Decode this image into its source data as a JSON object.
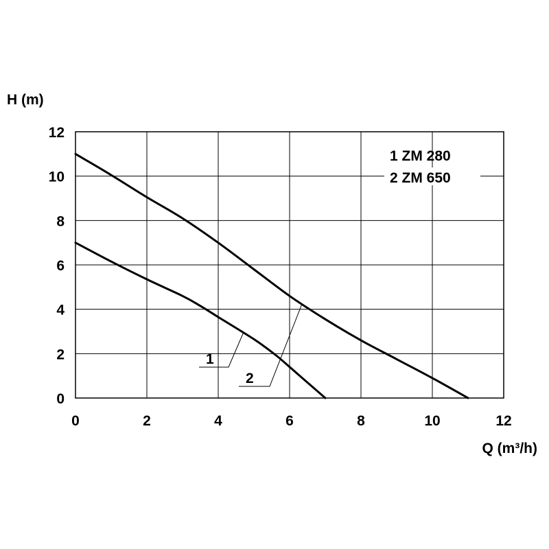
{
  "chart_data": {
    "type": "line",
    "title": "",
    "xlabel": "Q (m³/h)",
    "ylabel": "H (m)",
    "xlim": [
      0,
      12
    ],
    "ylim": [
      0,
      12
    ],
    "xticks": [
      0,
      2,
      4,
      6,
      8,
      10,
      12
    ],
    "yticks": [
      0,
      2,
      4,
      6,
      8,
      10,
      12
    ],
    "grid": true,
    "legend_position": "top-right",
    "line_color": "#000000",
    "series": [
      {
        "id": "1",
        "name": "ZM 280",
        "legend_label": "1  ZM 280",
        "tag": "1",
        "points": [
          [
            0,
            7.0
          ],
          [
            1,
            6.15
          ],
          [
            2,
            5.35
          ],
          [
            3,
            4.6
          ],
          [
            3.5,
            4.15
          ],
          [
            4,
            3.65
          ],
          [
            5,
            2.65
          ],
          [
            5.6,
            1.95
          ],
          [
            6,
            1.4
          ],
          [
            6.5,
            0.7
          ],
          [
            7,
            0.0
          ]
        ]
      },
      {
        "id": "2",
        "name": "ZM 650",
        "legend_label": "2  ZM 650",
        "tag": "2",
        "points": [
          [
            0,
            11.0
          ],
          [
            1,
            10.05
          ],
          [
            2,
            9.05
          ],
          [
            3,
            8.1
          ],
          [
            4,
            7.0
          ],
          [
            5,
            5.8
          ],
          [
            6,
            4.6
          ],
          [
            7,
            3.55
          ],
          [
            8,
            2.6
          ],
          [
            9,
            1.75
          ],
          [
            10,
            0.9
          ],
          [
            11,
            0.0
          ]
        ]
      }
    ]
  }
}
